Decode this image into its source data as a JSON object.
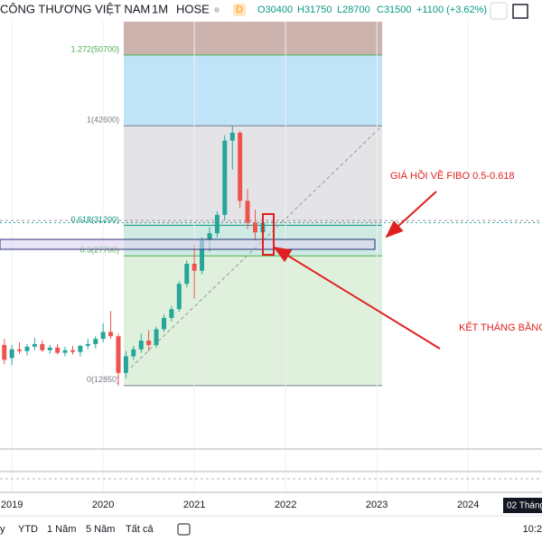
{
  "header": {
    "symbol": "CÔNG THƯƠNG VIỆT NAM",
    "interval": "1M",
    "exchange": "HOSE",
    "badge": "D",
    "open": "O30400",
    "high": "H31750",
    "low": "L28700",
    "close": "C31500",
    "change": "+1100 (+3.62%)"
  },
  "chart_data": {
    "type": "candlestick",
    "xlim": [
      2018.87,
      2024.81
    ],
    "xticks": [
      2019,
      2020,
      2021,
      2022,
      2023,
      2024
    ],
    "ylim": [
      5800,
      57000
    ],
    "up_color": "#26a69a",
    "down_color": "#ef5350",
    "x": [
      2018.917,
      2019.0,
      2019.083,
      2019.167,
      2019.25,
      2019.333,
      2019.417,
      2019.5,
      2019.583,
      2019.667,
      2019.75,
      2019.833,
      2019.917,
      2020.0,
      2020.083,
      2020.167,
      2020.25,
      2020.333,
      2020.417,
      2020.5,
      2020.583,
      2020.667,
      2020.75,
      2020.833,
      2020.917,
      2021.0,
      2021.083,
      2021.167,
      2021.25,
      2021.333,
      2021.417,
      2021.5,
      2021.583,
      2021.667,
      2021.75
    ],
    "open": [
      17500,
      16000,
      17000,
      16800,
      17300,
      17600,
      16900,
      17200,
      16600,
      16900,
      16700,
      17400,
      17600,
      18200,
      19000,
      18500,
      14300,
      16200,
      17000,
      18000,
      17500,
      19300,
      20600,
      21600,
      24500,
      26800,
      26000,
      29500,
      30300,
      32400,
      40900,
      41800,
      34000,
      31500,
      30400
    ],
    "high": [
      18200,
      17500,
      17800,
      17600,
      18300,
      18000,
      17500,
      17600,
      17300,
      17400,
      17500,
      18200,
      18500,
      20000,
      21400,
      18800,
      16800,
      17400,
      18800,
      19200,
      19600,
      21000,
      22000,
      24800,
      27200,
      29000,
      29800,
      31000,
      32800,
      41500,
      42600,
      42000,
      35400,
      33000,
      31750
    ],
    "low": [
      15300,
      15200,
      16500,
      16300,
      16900,
      16700,
      16500,
      16400,
      16200,
      16400,
      16200,
      17000,
      17100,
      17800,
      18200,
      12850,
      13700,
      15800,
      16600,
      16800,
      17200,
      19000,
      20200,
      21300,
      24100,
      22800,
      25600,
      28200,
      29800,
      31800,
      37600,
      33200,
      30800,
      29500,
      28700
    ],
    "close": [
      15800,
      17000,
      16800,
      17300,
      17600,
      16900,
      17200,
      16600,
      16900,
      16700,
      17400,
      17600,
      18200,
      19000,
      18500,
      14300,
      16200,
      17000,
      18000,
      17500,
      19300,
      20600,
      21600,
      24500,
      26800,
      26000,
      29500,
      30300,
      32400,
      40900,
      41800,
      34000,
      31500,
      30400,
      31500
    ],
    "fib_levels": [
      {
        "value": 50700,
        "label": "1.272(50700)",
        "color": "#4caf50"
      },
      {
        "value": 42600,
        "label": "1(42600)",
        "color": "#787b86"
      },
      {
        "value": 31200,
        "label": "0.618(31200)",
        "color": "#089981"
      },
      {
        "value": 27700,
        "label": "0.5(27700)",
        "color": "#4caf50"
      },
      {
        "value": 12850,
        "label": "0(12850)",
        "color": "#787b86"
      }
    ],
    "annotations": [
      "GIÁ HỒI VỀ FIBO 0.5-0.618",
      "KẾT THÁNG BẰNG"
    ],
    "date_tag": "02 Tháng"
  },
  "toolbar": {
    "ranges": [
      "y",
      "YTD",
      "1 Năm",
      "5 Năm",
      "Tất cả"
    ],
    "clock": "10:2"
  }
}
